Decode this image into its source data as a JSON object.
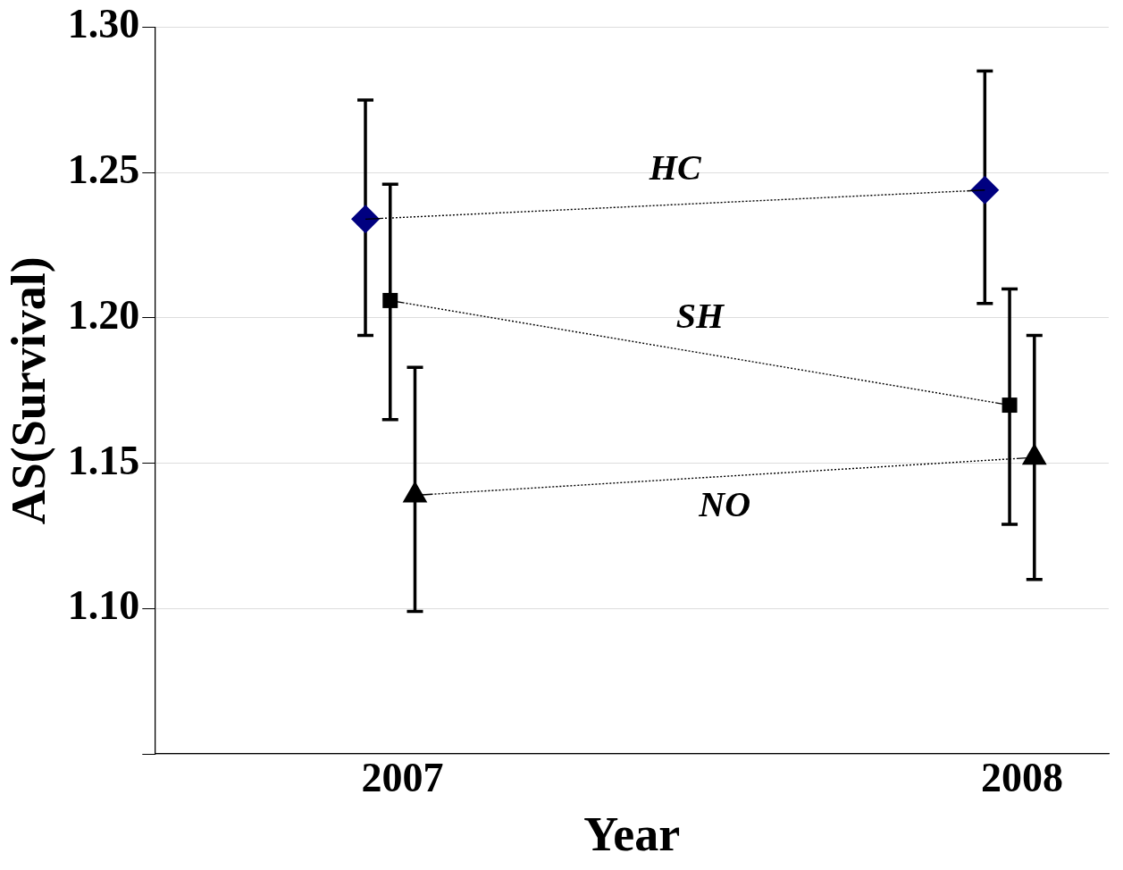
{
  "chart_data": {
    "type": "line",
    "xlabel": "Year",
    "ylabel": "AS(Survival)",
    "xlim": [
      2006.6,
      2008.14
    ],
    "xticks": [
      2007,
      2008
    ],
    "ylim": [
      1.05,
      1.3
    ],
    "yticks": [
      {
        "value": 1.05,
        "label": null
      },
      {
        "value": 1.1,
        "label": "1.10"
      },
      1.15,
      {
        "value": 1.2,
        "label": "1.20"
      },
      1.25,
      {
        "value": 1.3,
        "label": "1.30"
      }
    ],
    "grid": "y",
    "legend": false,
    "line_style": "dotted",
    "series": [
      {
        "name": "HC",
        "color": "#000080",
        "marker": "diamond",
        "x": [
          2006.94,
          2007.94
        ],
        "values": [
          1.234,
          1.244
        ],
        "errors": [
          [
            1.194,
            1.275
          ],
          [
            1.205,
            1.285
          ]
        ]
      },
      {
        "name": "SH",
        "color": "#000000",
        "marker": "square",
        "x": [
          2006.98,
          2007.98
        ],
        "values": [
          1.206,
          1.17
        ],
        "errors": [
          [
            1.165,
            1.246
          ],
          [
            1.129,
            1.21
          ]
        ]
      },
      {
        "name": "NO",
        "color": "#000000",
        "marker": "triangle",
        "x": [
          2007.02,
          2008.02
        ],
        "values": [
          1.139,
          1.152
        ],
        "errors": [
          [
            1.099,
            1.183
          ],
          [
            1.11,
            1.194
          ]
        ]
      }
    ]
  }
}
